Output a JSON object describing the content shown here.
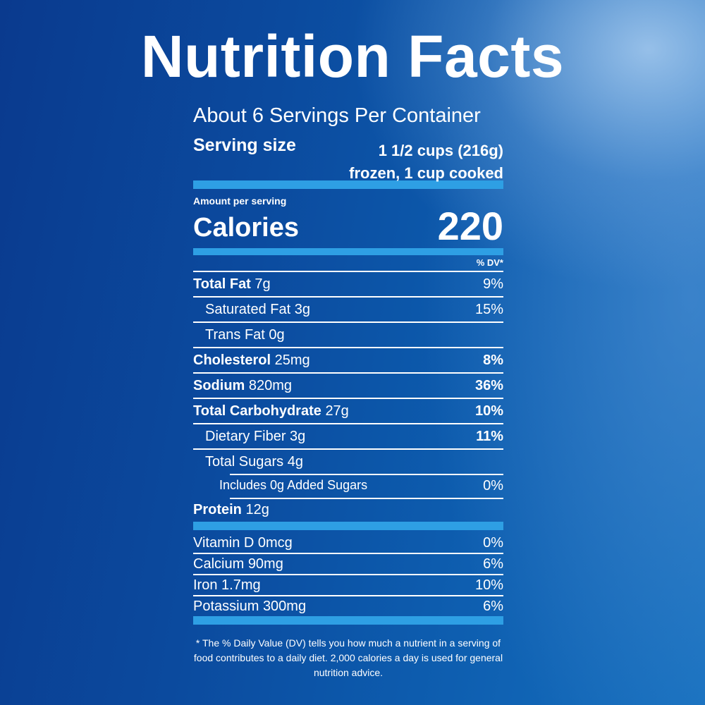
{
  "title": "Nutrition Facts",
  "servings_per_container": "About 6 Servings Per Container",
  "serving_size": {
    "label": "Serving size",
    "line1": "1 1/2 cups (216g)",
    "line2": "frozen, 1 cup cooked"
  },
  "amount_per_serving": "Amount per serving",
  "calories": {
    "label": "Calories",
    "value": "220"
  },
  "dv_header": "% DV*",
  "nutrients": [
    {
      "name": "Total Fat",
      "amount": "7g",
      "dv": "9%"
    },
    {
      "name": "Saturated Fat",
      "amount": "3g",
      "dv": "15%"
    },
    {
      "name": "Trans Fat",
      "amount": "0g",
      "dv": ""
    },
    {
      "name": "Cholesterol",
      "amount": "25mg",
      "dv": "8%"
    },
    {
      "name": "Sodium",
      "amount": "820mg",
      "dv": "36%"
    },
    {
      "name": "Total Carbohydrate",
      "amount": "27g",
      "dv": "10%"
    },
    {
      "name": "Dietary Fiber",
      "amount": "3g",
      "dv": "11%"
    },
    {
      "name": "Total Sugars",
      "amount": "4g",
      "dv": ""
    },
    {
      "name": "Includes 0g Added Sugars",
      "amount": "",
      "dv": "0%"
    },
    {
      "name": "Protein",
      "amount": "12g",
      "dv": ""
    }
  ],
  "vitamins": [
    {
      "name": "Vitamin D",
      "amount": "0mcg",
      "dv": "0%"
    },
    {
      "name": "Calcium",
      "amount": "90mg",
      "dv": "6%"
    },
    {
      "name": "Iron",
      "amount": "1.7mg",
      "dv": "10%"
    },
    {
      "name": "Potassium",
      "amount": "300mg",
      "dv": "6%"
    }
  ],
  "footnote": "* The % Daily Value (DV) tells you how much a nutrient in a serving of food contributes to a daily diet. 2,000 calories a day is used for general nutrition advice.",
  "colors": {
    "accent_bar": "#2e9fe4",
    "background": "#0b4a9e"
  }
}
